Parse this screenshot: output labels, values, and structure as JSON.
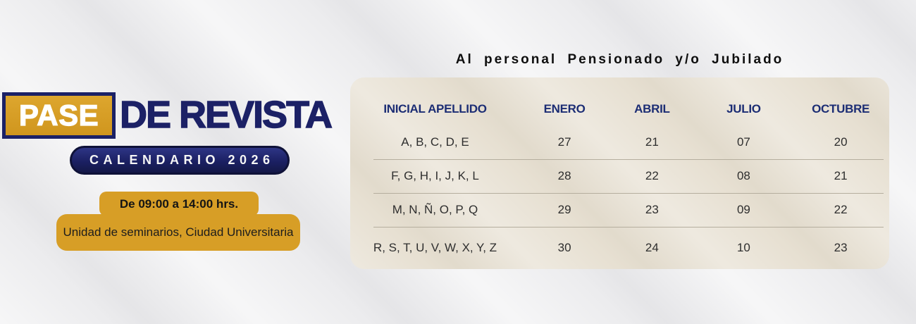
{
  "left_banner": {
    "title_word_highlight": "PASE",
    "title_word_rest": "DE REVISTA",
    "calendar_label": "CALENDARIO 2026",
    "schedule_label": "De 09:00 a 14:00 hrs.",
    "venue_label": "Unidad de seminarios, Ciudad Universitaria"
  },
  "schedule_table": {
    "heading": "Al personal Pensionado y/o Jubilado",
    "columns": [
      "INICIAL APELLIDO",
      "ENERO",
      "ABRIL",
      "JULIO",
      "OCTUBRE"
    ],
    "rows": [
      {
        "cells": [
          "A, B, C, D, E",
          "27",
          "21",
          "07",
          "20"
        ]
      },
      {
        "cells": [
          "F, G, H, I, J, K, L",
          "28",
          "22",
          "08",
          "21"
        ]
      },
      {
        "cells": [
          "M, N, Ñ, O, P, Q",
          "29",
          "23",
          "09",
          "22"
        ]
      },
      {
        "cells": [
          "R, S, T, U, V, W, X, Y, Z",
          "30",
          "24",
          "10",
          "23"
        ]
      }
    ]
  },
  "colors": {
    "gold": "#D79E26",
    "navy": "#1C2166",
    "pill_navy": "#1B2063",
    "panel_beige": "#E7E0D2",
    "background_gray": "#ECECEE",
    "column_header_text": "#1C2D74",
    "cell_text": "#2E2E2E",
    "heading_text": "#0E0E0E"
  }
}
